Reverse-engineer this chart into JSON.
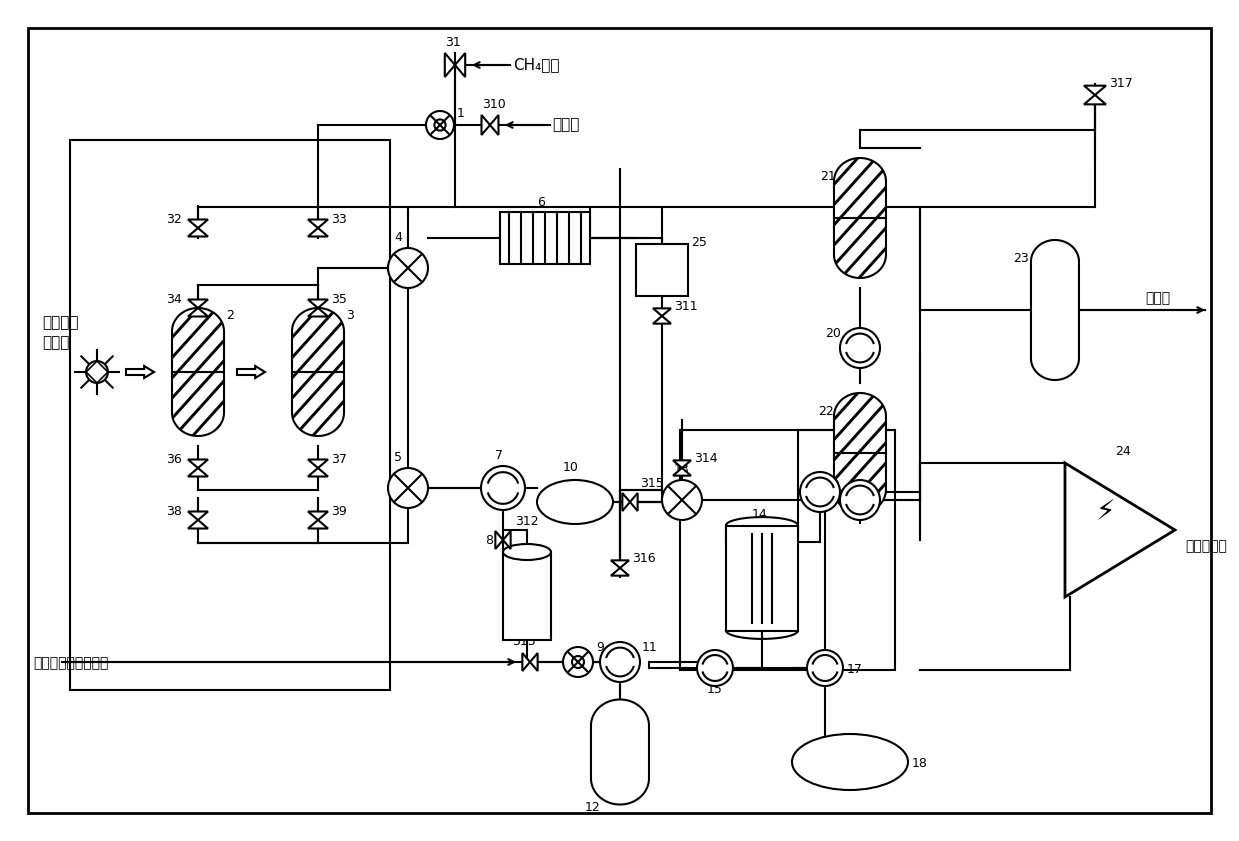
{
  "figsize": [
    12.39,
    8.41
  ],
  "dpi": 100,
  "bg": "#ffffff",
  "lw": 1.5,
  "lc": "#000000",
  "texts": {
    "solar1": "高温聚光",
    "solar2": "太阳能",
    "ch4": "CH₄管道",
    "refined": "精制水",
    "condensate": "冷凝液",
    "to_cond": "去往凝汽器",
    "from_cond": "来自凝汽器和精制水"
  }
}
